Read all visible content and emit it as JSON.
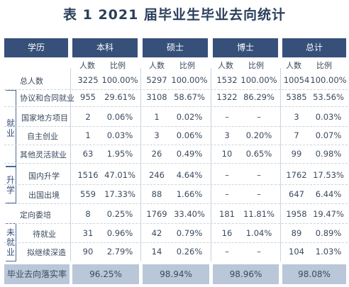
{
  "title": "表 1  2021 届毕业生毕业去向统计",
  "header": {
    "col0": "学历",
    "groups": [
      "本科",
      "硕士",
      "博士",
      "总计"
    ],
    "sub": [
      "人数",
      "比例"
    ]
  },
  "sections": {
    "employment": "就\n业",
    "further": "升\n学",
    "unemployed": "未\n就\n业"
  },
  "rows": [
    {
      "label": "总人数",
      "v": [
        "3225",
        "100.00%",
        "5297",
        "100.00%",
        "1532",
        "100.00%",
        "10054",
        "100.00%"
      ]
    },
    {
      "label": "协议和合同就业",
      "v": [
        "955",
        "29.61%",
        "3108",
        "58.67%",
        "1322",
        "86.29%",
        "5385",
        "53.56%"
      ]
    },
    {
      "label": "国家地方项目",
      "v": [
        "2",
        "0.06%",
        "1",
        "0.02%",
        "–",
        "–",
        "3",
        "0.03%"
      ]
    },
    {
      "label": "自主创业",
      "v": [
        "1",
        "0.03%",
        "3",
        "0.06%",
        "3",
        "0.20%",
        "7",
        "0.07%"
      ]
    },
    {
      "label": "其他灵活就业",
      "v": [
        "63",
        "1.95%",
        "26",
        "0.49%",
        "10",
        "0.65%",
        "99",
        "0.98%"
      ]
    },
    {
      "label": "国内升学",
      "v": [
        "1516",
        "47.01%",
        "246",
        "4.64%",
        "–",
        "–",
        "1762",
        "17.53%"
      ]
    },
    {
      "label": "出国出境",
      "v": [
        "559",
        "17.33%",
        "88",
        "1.66%",
        "–",
        "–",
        "647",
        "6.44%"
      ]
    },
    {
      "label": "定向委培",
      "v": [
        "8",
        "0.25%",
        "1769",
        "33.40%",
        "181",
        "11.81%",
        "1958",
        "19.47%"
      ]
    },
    {
      "label": "待就业",
      "v": [
        "31",
        "0.96%",
        "42",
        "0.79%",
        "16",
        "1.04%",
        "89",
        "0.89%"
      ]
    },
    {
      "label": "拟继续深造",
      "v": [
        "90",
        "2.79%",
        "14",
        "0.26%",
        "–",
        "–",
        "104",
        "1.03%"
      ]
    }
  ],
  "footer": {
    "label": "毕业去向落实率",
    "values": [
      "96.25%",
      "98.94%",
      "98.96%",
      "98.08%"
    ]
  },
  "colors": {
    "header_bg": "#36507a",
    "footer_bg": "#b9c7d8",
    "title": "#2b3f5c"
  }
}
